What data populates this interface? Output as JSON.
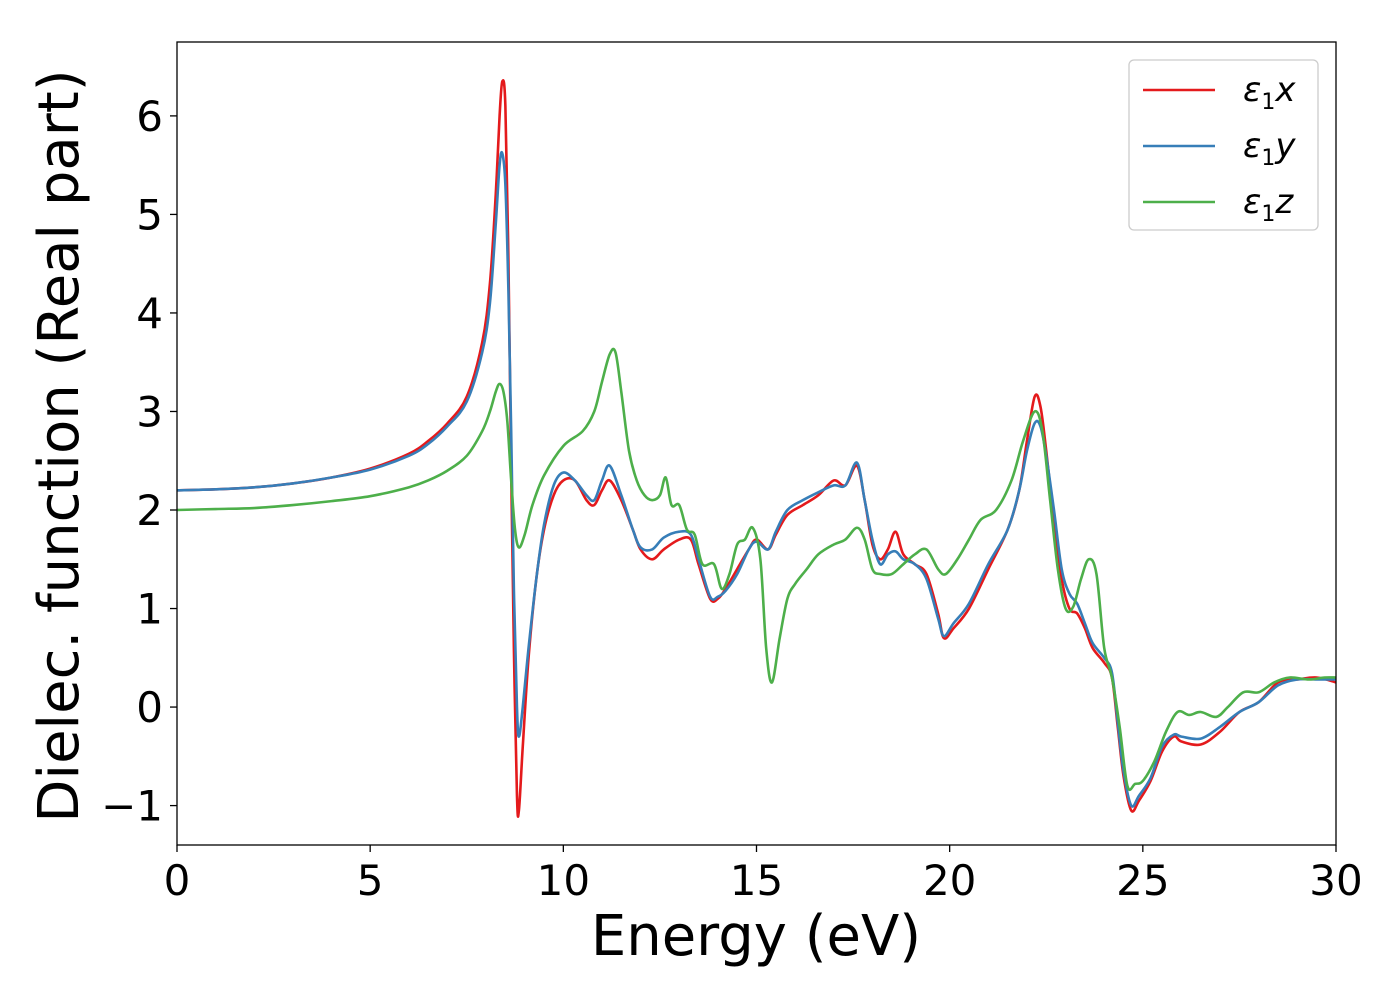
{
  "chart_data": {
    "type": "line",
    "title": "",
    "xlabel": "Energy (eV)",
    "ylabel": "Dielec. function (Real part)",
    "xlim": [
      0,
      30
    ],
    "ylim": [
      -1.4,
      6.75
    ],
    "xticks": [
      0,
      5,
      10,
      15,
      20,
      25,
      30
    ],
    "xtick_labels": [
      "0",
      "5",
      "10",
      "15",
      "20",
      "25",
      "30"
    ],
    "yticks": [
      -1,
      0,
      1,
      2,
      3,
      4,
      5,
      6
    ],
    "ytick_labels": [
      "−1",
      "0",
      "1",
      "2",
      "3",
      "4",
      "5",
      "6"
    ],
    "grid": false,
    "legend_position": "top-right",
    "series": [
      {
        "name": "ε₁x",
        "name_main": "ε",
        "name_sub": "1",
        "name_tail": "x",
        "color": "#e41a1c",
        "points": [
          [
            0,
            2.2
          ],
          [
            1,
            2.21
          ],
          [
            2,
            2.23
          ],
          [
            3,
            2.27
          ],
          [
            4,
            2.33
          ],
          [
            5,
            2.42
          ],
          [
            6,
            2.57
          ],
          [
            6.5,
            2.7
          ],
          [
            7,
            2.88
          ],
          [
            7.5,
            3.15
          ],
          [
            7.9,
            3.7
          ],
          [
            8.1,
            4.3
          ],
          [
            8.25,
            5.2
          ],
          [
            8.35,
            6.0
          ],
          [
            8.42,
            6.35
          ],
          [
            8.5,
            6.1
          ],
          [
            8.58,
            4.5
          ],
          [
            8.65,
            2.4
          ],
          [
            8.72,
            0.6
          ],
          [
            8.8,
            -0.9
          ],
          [
            8.85,
            -1.05
          ],
          [
            8.95,
            -0.4
          ],
          [
            9.1,
            0.5
          ],
          [
            9.3,
            1.3
          ],
          [
            9.5,
            1.8
          ],
          [
            9.75,
            2.15
          ],
          [
            10,
            2.3
          ],
          [
            10.3,
            2.3
          ],
          [
            10.6,
            2.1
          ],
          [
            10.8,
            2.05
          ],
          [
            11,
            2.2
          ],
          [
            11.2,
            2.3
          ],
          [
            11.5,
            2.1
          ],
          [
            11.8,
            1.8
          ],
          [
            12,
            1.6
          ],
          [
            12.3,
            1.5
          ],
          [
            12.6,
            1.6
          ],
          [
            13.0,
            1.7
          ],
          [
            13.3,
            1.7
          ],
          [
            13.5,
            1.45
          ],
          [
            13.8,
            1.1
          ],
          [
            14.0,
            1.1
          ],
          [
            14.2,
            1.2
          ],
          [
            14.5,
            1.4
          ],
          [
            14.8,
            1.6
          ],
          [
            15.0,
            1.7
          ],
          [
            15.3,
            1.6
          ],
          [
            15.5,
            1.75
          ],
          [
            15.8,
            1.95
          ],
          [
            16.2,
            2.05
          ],
          [
            16.6,
            2.15
          ],
          [
            17.0,
            2.3
          ],
          [
            17.3,
            2.25
          ],
          [
            17.6,
            2.45
          ],
          [
            17.8,
            2.1
          ],
          [
            18.0,
            1.65
          ],
          [
            18.2,
            1.5
          ],
          [
            18.4,
            1.6
          ],
          [
            18.6,
            1.78
          ],
          [
            18.8,
            1.55
          ],
          [
            19.1,
            1.45
          ],
          [
            19.4,
            1.35
          ],
          [
            19.7,
            0.95
          ],
          [
            19.85,
            0.7
          ],
          [
            20.1,
            0.8
          ],
          [
            20.5,
            1.0
          ],
          [
            21.0,
            1.4
          ],
          [
            21.5,
            1.8
          ],
          [
            21.8,
            2.2
          ],
          [
            22.0,
            2.7
          ],
          [
            22.2,
            3.15
          ],
          [
            22.35,
            3.05
          ],
          [
            22.5,
            2.6
          ],
          [
            22.7,
            1.9
          ],
          [
            22.9,
            1.3
          ],
          [
            23.1,
            1.0
          ],
          [
            23.3,
            0.95
          ],
          [
            23.5,
            0.8
          ],
          [
            23.7,
            0.6
          ],
          [
            24.0,
            0.45
          ],
          [
            24.2,
            0.3
          ],
          [
            24.35,
            -0.2
          ],
          [
            24.5,
            -0.7
          ],
          [
            24.7,
            -1.05
          ],
          [
            24.9,
            -0.95
          ],
          [
            25.2,
            -0.75
          ],
          [
            25.5,
            -0.45
          ],
          [
            25.8,
            -0.3
          ],
          [
            26.0,
            -0.35
          ],
          [
            26.5,
            -0.38
          ],
          [
            27.0,
            -0.25
          ],
          [
            27.5,
            -0.05
          ],
          [
            28.0,
            0.05
          ],
          [
            28.5,
            0.25
          ],
          [
            29.0,
            0.28
          ],
          [
            29.5,
            0.3
          ],
          [
            30.0,
            0.25
          ]
        ]
      },
      {
        "name": "ε₁y",
        "name_main": "ε",
        "name_sub": "1",
        "name_tail": "y",
        "color": "#377eb8",
        "points": [
          [
            0,
            2.2
          ],
          [
            1,
            2.21
          ],
          [
            2,
            2.23
          ],
          [
            3,
            2.27
          ],
          [
            4,
            2.33
          ],
          [
            5,
            2.41
          ],
          [
            6,
            2.55
          ],
          [
            6.5,
            2.67
          ],
          [
            7,
            2.85
          ],
          [
            7.5,
            3.1
          ],
          [
            7.9,
            3.6
          ],
          [
            8.1,
            4.1
          ],
          [
            8.25,
            4.9
          ],
          [
            8.35,
            5.5
          ],
          [
            8.42,
            5.62
          ],
          [
            8.5,
            5.3
          ],
          [
            8.58,
            4.2
          ],
          [
            8.65,
            2.8
          ],
          [
            8.72,
            1.2
          ],
          [
            8.8,
            0.0
          ],
          [
            8.85,
            -0.3
          ],
          [
            8.95,
            0.0
          ],
          [
            9.1,
            0.6
          ],
          [
            9.3,
            1.3
          ],
          [
            9.5,
            1.85
          ],
          [
            9.75,
            2.25
          ],
          [
            10,
            2.38
          ],
          [
            10.3,
            2.3
          ],
          [
            10.6,
            2.15
          ],
          [
            10.8,
            2.1
          ],
          [
            11,
            2.3
          ],
          [
            11.2,
            2.45
          ],
          [
            11.5,
            2.15
          ],
          [
            11.8,
            1.8
          ],
          [
            12,
            1.62
          ],
          [
            12.3,
            1.6
          ],
          [
            12.6,
            1.72
          ],
          [
            13.0,
            1.78
          ],
          [
            13.3,
            1.75
          ],
          [
            13.5,
            1.5
          ],
          [
            13.8,
            1.12
          ],
          [
            14.0,
            1.12
          ],
          [
            14.2,
            1.18
          ],
          [
            14.5,
            1.35
          ],
          [
            14.8,
            1.6
          ],
          [
            15.0,
            1.68
          ],
          [
            15.3,
            1.6
          ],
          [
            15.5,
            1.78
          ],
          [
            15.8,
            2.0
          ],
          [
            16.2,
            2.1
          ],
          [
            16.6,
            2.18
          ],
          [
            17.0,
            2.25
          ],
          [
            17.3,
            2.25
          ],
          [
            17.6,
            2.48
          ],
          [
            17.8,
            2.1
          ],
          [
            18.0,
            1.7
          ],
          [
            18.2,
            1.45
          ],
          [
            18.4,
            1.55
          ],
          [
            18.6,
            1.58
          ],
          [
            18.8,
            1.5
          ],
          [
            19.1,
            1.45
          ],
          [
            19.4,
            1.3
          ],
          [
            19.7,
            0.9
          ],
          [
            19.85,
            0.72
          ],
          [
            20.1,
            0.85
          ],
          [
            20.5,
            1.05
          ],
          [
            21.0,
            1.45
          ],
          [
            21.5,
            1.8
          ],
          [
            21.8,
            2.2
          ],
          [
            22.0,
            2.6
          ],
          [
            22.2,
            2.88
          ],
          [
            22.35,
            2.85
          ],
          [
            22.5,
            2.55
          ],
          [
            22.7,
            2.0
          ],
          [
            22.9,
            1.4
          ],
          [
            23.1,
            1.15
          ],
          [
            23.3,
            1.05
          ],
          [
            23.5,
            0.85
          ],
          [
            23.7,
            0.65
          ],
          [
            24.0,
            0.5
          ],
          [
            24.2,
            0.35
          ],
          [
            24.35,
            -0.15
          ],
          [
            24.5,
            -0.65
          ],
          [
            24.7,
            -1.0
          ],
          [
            24.9,
            -0.9
          ],
          [
            25.2,
            -0.72
          ],
          [
            25.5,
            -0.4
          ],
          [
            25.8,
            -0.28
          ],
          [
            26.0,
            -0.3
          ],
          [
            26.5,
            -0.32
          ],
          [
            27.0,
            -0.2
          ],
          [
            27.5,
            -0.05
          ],
          [
            28.0,
            0.05
          ],
          [
            28.5,
            0.22
          ],
          [
            29.0,
            0.28
          ],
          [
            29.5,
            0.28
          ],
          [
            30.0,
            0.28
          ]
        ]
      },
      {
        "name": "ε₁z",
        "name_main": "ε",
        "name_sub": "1",
        "name_tail": "z",
        "color": "#4daf4a",
        "points": [
          [
            0,
            2.0
          ],
          [
            1,
            2.01
          ],
          [
            2,
            2.02
          ],
          [
            3,
            2.05
          ],
          [
            4,
            2.09
          ],
          [
            5,
            2.14
          ],
          [
            6,
            2.23
          ],
          [
            6.5,
            2.3
          ],
          [
            7,
            2.4
          ],
          [
            7.5,
            2.55
          ],
          [
            7.9,
            2.8
          ],
          [
            8.1,
            3.0
          ],
          [
            8.25,
            3.2
          ],
          [
            8.35,
            3.28
          ],
          [
            8.45,
            3.2
          ],
          [
            8.55,
            2.9
          ],
          [
            8.65,
            2.3
          ],
          [
            8.75,
            1.8
          ],
          [
            8.85,
            1.62
          ],
          [
            9.0,
            1.75
          ],
          [
            9.2,
            2.05
          ],
          [
            9.5,
            2.35
          ],
          [
            10.0,
            2.65
          ],
          [
            10.5,
            2.8
          ],
          [
            10.8,
            3.0
          ],
          [
            11.0,
            3.3
          ],
          [
            11.2,
            3.58
          ],
          [
            11.35,
            3.6
          ],
          [
            11.5,
            3.2
          ],
          [
            11.7,
            2.6
          ],
          [
            11.9,
            2.3
          ],
          [
            12.1,
            2.15
          ],
          [
            12.3,
            2.1
          ],
          [
            12.5,
            2.15
          ],
          [
            12.65,
            2.33
          ],
          [
            12.8,
            2.05
          ],
          [
            13.0,
            2.05
          ],
          [
            13.2,
            1.8
          ],
          [
            13.4,
            1.75
          ],
          [
            13.6,
            1.45
          ],
          [
            13.9,
            1.45
          ],
          [
            14.1,
            1.2
          ],
          [
            14.3,
            1.35
          ],
          [
            14.5,
            1.65
          ],
          [
            14.7,
            1.7
          ],
          [
            14.9,
            1.82
          ],
          [
            15.1,
            1.5
          ],
          [
            15.25,
            0.6
          ],
          [
            15.4,
            0.25
          ],
          [
            15.6,
            0.7
          ],
          [
            15.8,
            1.1
          ],
          [
            16.0,
            1.25
          ],
          [
            16.3,
            1.4
          ],
          [
            16.6,
            1.55
          ],
          [
            17.0,
            1.65
          ],
          [
            17.3,
            1.7
          ],
          [
            17.6,
            1.82
          ],
          [
            17.8,
            1.7
          ],
          [
            18.0,
            1.4
          ],
          [
            18.2,
            1.35
          ],
          [
            18.5,
            1.35
          ],
          [
            18.8,
            1.45
          ],
          [
            19.1,
            1.55
          ],
          [
            19.4,
            1.6
          ],
          [
            19.7,
            1.4
          ],
          [
            19.9,
            1.35
          ],
          [
            20.2,
            1.5
          ],
          [
            20.5,
            1.7
          ],
          [
            20.8,
            1.9
          ],
          [
            21.2,
            2.0
          ],
          [
            21.6,
            2.3
          ],
          [
            21.9,
            2.7
          ],
          [
            22.2,
            3.0
          ],
          [
            22.4,
            2.8
          ],
          [
            22.6,
            2.1
          ],
          [
            22.8,
            1.4
          ],
          [
            23.0,
            1.0
          ],
          [
            23.2,
            1.02
          ],
          [
            23.4,
            1.3
          ],
          [
            23.6,
            1.5
          ],
          [
            23.8,
            1.35
          ],
          [
            24.0,
            0.6
          ],
          [
            24.2,
            0.3
          ],
          [
            24.4,
            -0.2
          ],
          [
            24.6,
            -0.8
          ],
          [
            24.8,
            -0.78
          ],
          [
            25.0,
            -0.75
          ],
          [
            25.3,
            -0.55
          ],
          [
            25.6,
            -0.25
          ],
          [
            25.9,
            -0.05
          ],
          [
            26.2,
            -0.08
          ],
          [
            26.5,
            -0.05
          ],
          [
            26.9,
            -0.1
          ],
          [
            27.2,
            0.0
          ],
          [
            27.6,
            0.15
          ],
          [
            28.0,
            0.15
          ],
          [
            28.4,
            0.25
          ],
          [
            28.8,
            0.3
          ],
          [
            29.3,
            0.28
          ],
          [
            29.7,
            0.3
          ],
          [
            30.0,
            0.3
          ]
        ]
      }
    ]
  }
}
